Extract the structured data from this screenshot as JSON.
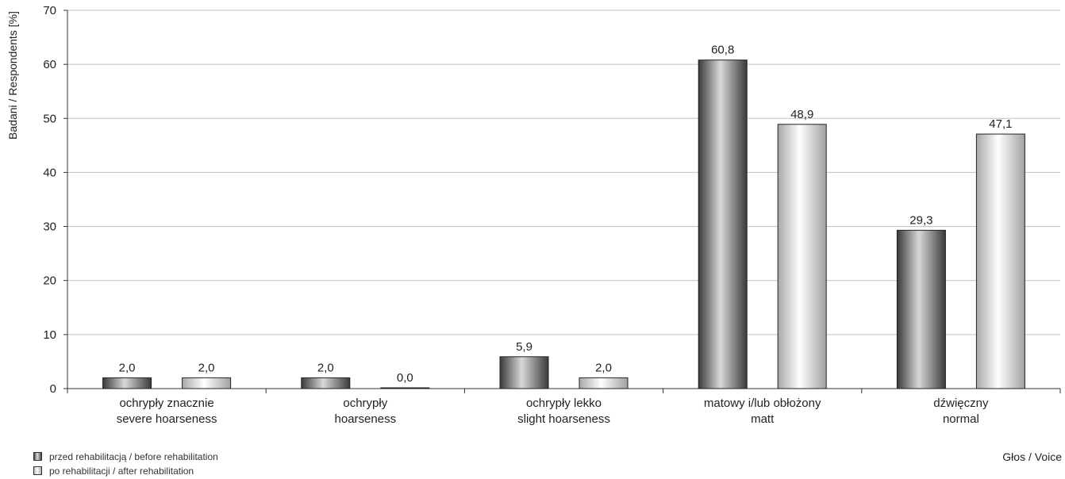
{
  "chart_data": {
    "type": "bar",
    "xlabel": "Głos / Voice",
    "ylabel": "Badani / Respondents [%]",
    "ylim": [
      0,
      70
    ],
    "yticks": [
      0,
      10,
      20,
      30,
      40,
      50,
      60,
      70
    ],
    "grid": true,
    "legend_position": "bottom-left",
    "categories": [
      [
        "ochrypły znacznie",
        "severe hoarseness"
      ],
      [
        "ochrypły",
        "hoarseness"
      ],
      [
        "ochrypły lekko",
        "slight hoarseness"
      ],
      [
        "matowy i/lub obłożony",
        "matt"
      ],
      [
        "dźwięczny",
        "normal"
      ]
    ],
    "series": [
      {
        "name": "przed rehabilitacją / before rehabilitation",
        "values": [
          2.0,
          2.0,
          5.9,
          60.8,
          29.3
        ],
        "labels": [
          "2,0",
          "2,0",
          "5,9",
          "60,8",
          "29,3"
        ]
      },
      {
        "name": "po rehabilitacji / after rehabilitation",
        "values": [
          2.0,
          0.0,
          2.0,
          48.9,
          47.1
        ],
        "labels": [
          "2,0",
          "0,0",
          "2,0",
          "48,9",
          "47,1"
        ]
      }
    ]
  },
  "colors": {
    "dark_series_edge": "#444444",
    "dark_series_highlight": "#dddddd",
    "light_series_edge": "#aaaaaa",
    "light_series_highlight": "#ffffff",
    "grid": "#c0c0c0",
    "axis": "#333333"
  }
}
